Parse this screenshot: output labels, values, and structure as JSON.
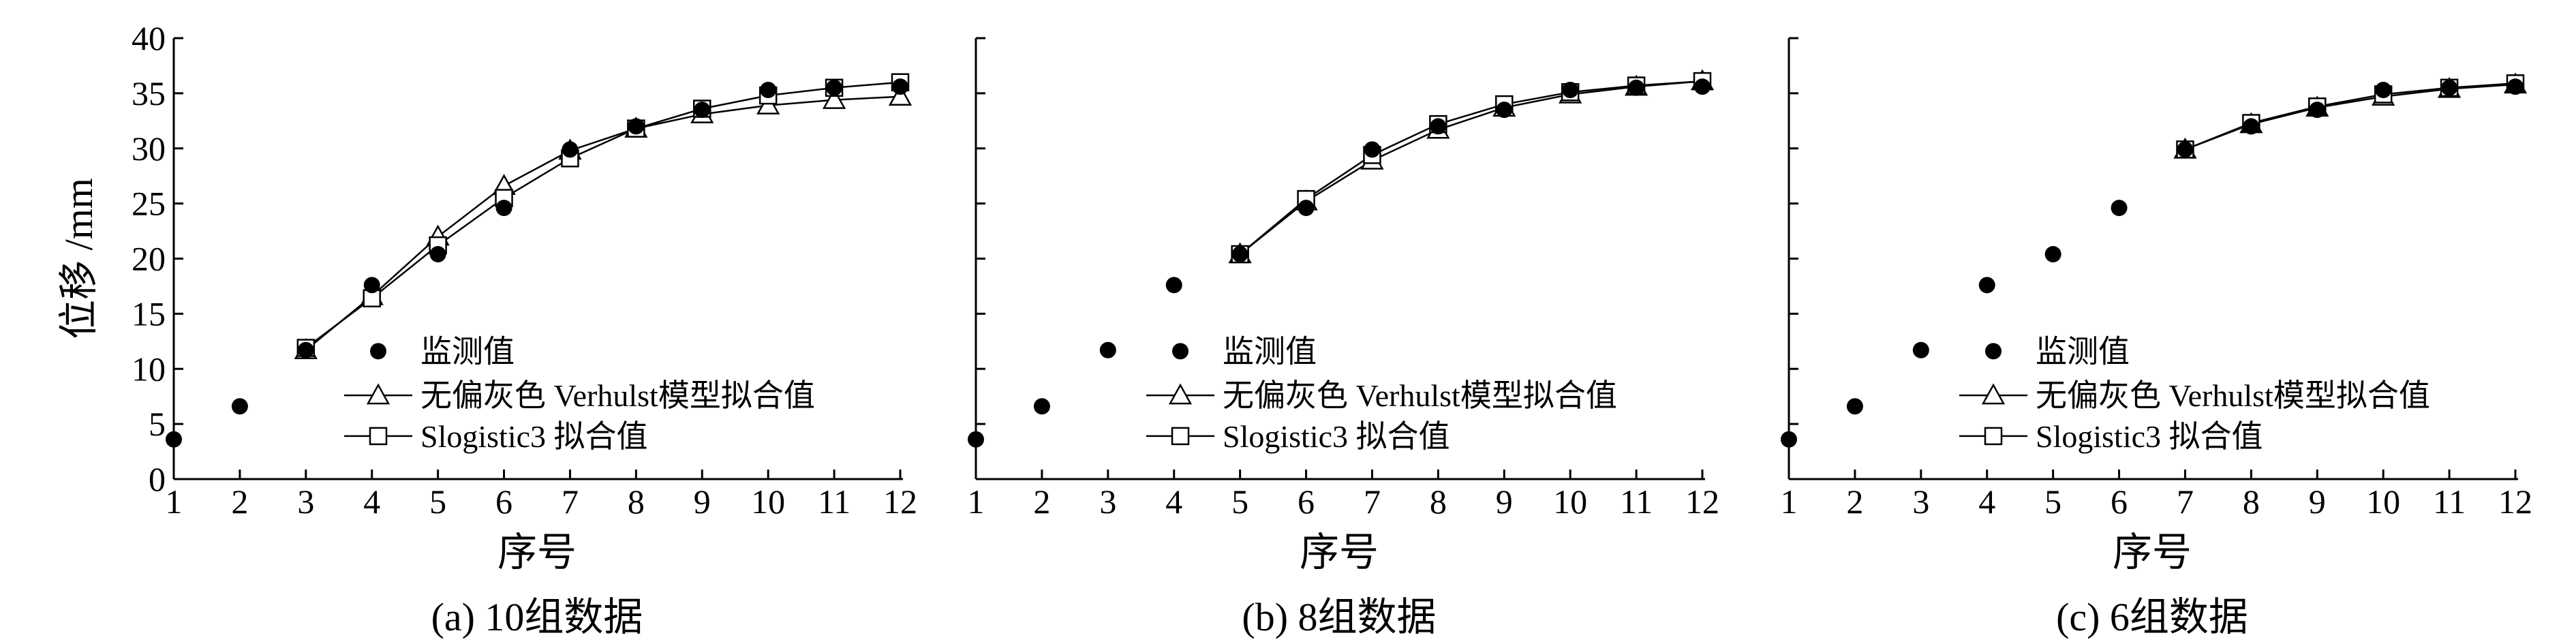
{
  "chart_data": [
    {
      "type": "line",
      "caption": "(a) 10组数据",
      "xlabel": "序号",
      "ylabel": "位移 /mm",
      "xlim": [
        1,
        12
      ],
      "ylim": [
        0,
        40
      ],
      "x_ticks": [
        1,
        2,
        3,
        4,
        5,
        6,
        7,
        8,
        9,
        10,
        11,
        12
      ],
      "y_ticks": [
        0,
        5,
        10,
        15,
        20,
        25,
        30,
        35,
        40
      ],
      "grid": false,
      "legend": "center",
      "series": [
        {
          "name": "监测值",
          "marker": "filled-circle",
          "line": false,
          "x": [
            1,
            2,
            3,
            4,
            5,
            6,
            7,
            8,
            9,
            10,
            11,
            12
          ],
          "y": [
            3.6,
            6.6,
            11.7,
            17.6,
            20.4,
            24.6,
            29.9,
            32.0,
            33.5,
            35.3,
            35.5,
            35.6
          ]
        },
        {
          "name": "无偏灰色 Verhulst模型拟合值",
          "marker": "triangle",
          "line": true,
          "x": [
            3,
            4,
            5,
            6,
            7,
            8,
            9,
            10,
            11,
            12
          ],
          "y": [
            11.7,
            16.6,
            22.0,
            26.6,
            29.8,
            31.8,
            33.1,
            33.9,
            34.4,
            34.7
          ]
        },
        {
          "name": "Slogistic3 拟合值",
          "marker": "square",
          "line": true,
          "x": [
            3,
            4,
            5,
            6,
            7,
            8,
            9,
            10,
            11,
            12
          ],
          "y": [
            11.9,
            16.4,
            21.2,
            25.5,
            29.1,
            31.8,
            33.6,
            34.8,
            35.5,
            36.0
          ]
        }
      ]
    },
    {
      "type": "line",
      "caption": "(b) 8组数据",
      "xlabel": "序号",
      "ylabel": "",
      "xlim": [
        1,
        12
      ],
      "ylim": [
        0,
        40
      ],
      "x_ticks": [
        1,
        2,
        3,
        4,
        5,
        6,
        7,
        8,
        9,
        10,
        11,
        12
      ],
      "y_ticks": [
        0,
        5,
        10,
        15,
        20,
        25,
        30,
        35,
        40
      ],
      "grid": false,
      "legend": "center",
      "series": [
        {
          "name": "监测值",
          "marker": "filled-circle",
          "line": false,
          "x": [
            1,
            2,
            3,
            4,
            5,
            6,
            7,
            8,
            9,
            10,
            11,
            12
          ],
          "y": [
            3.6,
            6.6,
            11.7,
            17.6,
            20.4,
            24.6,
            29.9,
            32.0,
            33.5,
            35.3,
            35.5,
            35.6
          ]
        },
        {
          "name": "无偏灰色 Verhulst模型拟合值",
          "marker": "triangle",
          "line": true,
          "x": [
            5,
            6,
            7,
            8,
            9,
            10,
            11,
            12
          ],
          "y": [
            20.4,
            25.2,
            28.9,
            31.7,
            33.7,
            34.9,
            35.6,
            36.1
          ]
        },
        {
          "name": "Slogistic3 拟合值",
          "marker": "square",
          "line": true,
          "x": [
            5,
            6,
            7,
            8,
            9,
            10,
            11,
            12
          ],
          "y": [
            20.4,
            25.4,
            29.4,
            32.2,
            34.0,
            35.1,
            35.7,
            36.1
          ]
        }
      ]
    },
    {
      "type": "line",
      "caption": "(c) 6组数据",
      "xlabel": "序号",
      "ylabel": "",
      "xlim": [
        1,
        12
      ],
      "ylim": [
        0,
        40
      ],
      "x_ticks": [
        1,
        2,
        3,
        4,
        5,
        6,
        7,
        8,
        9,
        10,
        11,
        12
      ],
      "y_ticks": [
        0,
        5,
        10,
        15,
        20,
        25,
        30,
        35,
        40
      ],
      "grid": false,
      "legend": "center",
      "series": [
        {
          "name": "监测值",
          "marker": "filled-circle",
          "line": false,
          "x": [
            1,
            2,
            3,
            4,
            5,
            6,
            7,
            8,
            9,
            10,
            11,
            12
          ],
          "y": [
            3.6,
            6.6,
            11.7,
            17.6,
            20.4,
            24.6,
            29.9,
            32.0,
            33.5,
            35.3,
            35.5,
            35.6
          ]
        },
        {
          "name": "无偏灰色 Verhulst模型拟合值",
          "marker": "triangle",
          "line": true,
          "x": [
            7,
            8,
            9,
            10,
            11,
            12
          ],
          "y": [
            29.9,
            32.2,
            33.7,
            34.7,
            35.4,
            35.8
          ]
        },
        {
          "name": "Slogistic3 拟合值",
          "marker": "square",
          "line": true,
          "x": [
            7,
            8,
            9,
            10,
            11,
            12
          ],
          "y": [
            29.9,
            32.3,
            33.8,
            34.9,
            35.5,
            35.9
          ]
        }
      ]
    }
  ]
}
